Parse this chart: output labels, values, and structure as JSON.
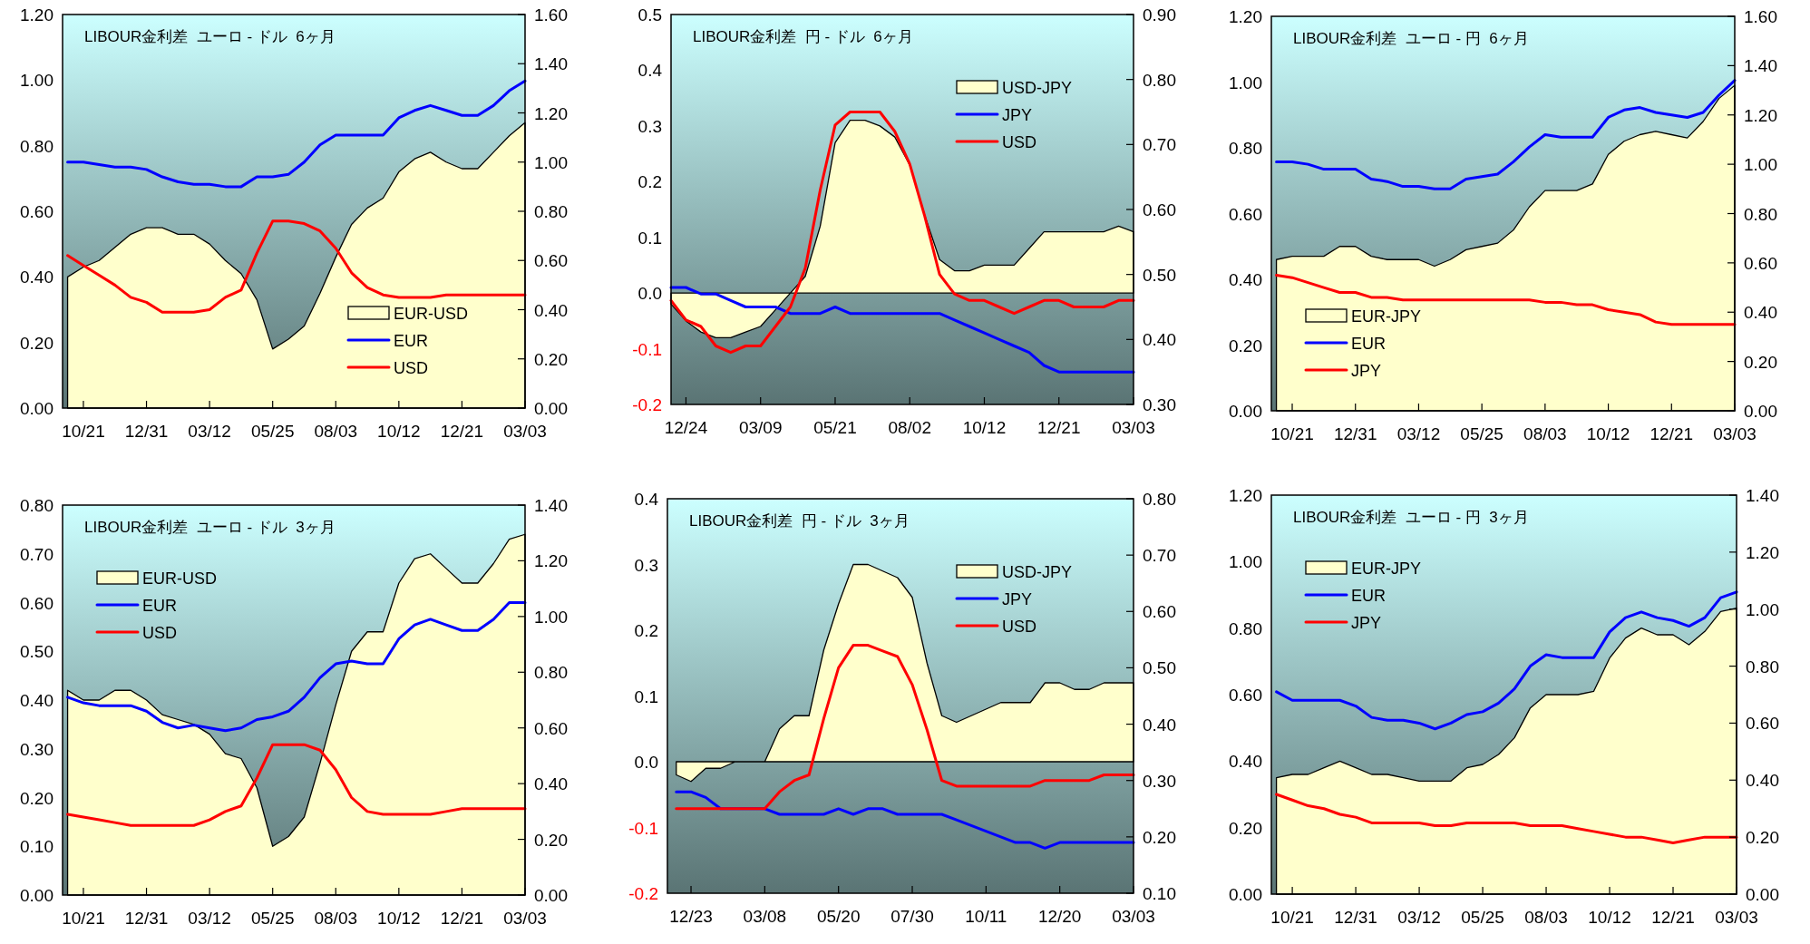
{
  "chart_data": [
    {
      "type": "line",
      "title": "LIBOUR金利差  ユーロ - ドル  6ヶ月",
      "legend": "bottom right",
      "categories": [
        null,
        "10/21",
        null,
        null,
        null,
        "12/31",
        null,
        null,
        null,
        "03/12",
        null,
        null,
        null,
        "05/25",
        null,
        null,
        null,
        "08/03",
        null,
        null,
        null,
        "10/12",
        null,
        null,
        null,
        "12/21",
        null,
        null,
        null,
        "03/03"
      ],
      "ylim": [
        0,
        1.2
      ],
      "yticks": [
        {
          "value": 0,
          "label": "0.00"
        },
        {
          "value": 0.2,
          "label": "0.20"
        },
        {
          "value": 0.4,
          "label": "0.40"
        },
        {
          "value": 0.6,
          "label": "0.60"
        },
        {
          "value": 0.8,
          "label": "0.80"
        },
        {
          "value": 1.0,
          "label": "1.00"
        },
        {
          "value": 1.2,
          "label": "1.20"
        }
      ],
      "y2lim": [
        0,
        1.6
      ],
      "y2ticks": [
        {
          "value": 0,
          "label": "0.00"
        },
        {
          "value": 0.2,
          "label": "0.20"
        },
        {
          "value": 0.4,
          "label": "0.40"
        },
        {
          "value": 0.6,
          "label": "0.60"
        },
        {
          "value": 0.8,
          "label": "0.80"
        },
        {
          "value": 1.0,
          "label": "1.00"
        },
        {
          "value": 1.2,
          "label": "1.20"
        },
        {
          "value": 1.4,
          "label": "1.40"
        },
        {
          "value": 1.6,
          "label": "1.60"
        }
      ],
      "series": [
        {
          "name": "EUR-USD",
          "type": "area",
          "color": "#ffffcc",
          "values": [
            0.4,
            0.43,
            0.45,
            0.49,
            0.53,
            0.55,
            0.55,
            0.53,
            0.53,
            0.5,
            0.45,
            0.41,
            0.33,
            0.18,
            0.21,
            0.25,
            0.35,
            0.46,
            0.56,
            0.61,
            0.64,
            0.72,
            0.76,
            0.78,
            0.75,
            0.73,
            0.73,
            0.78,
            0.83,
            0.87
          ]
        },
        {
          "name": "EUR",
          "type": "line",
          "axis": "y2",
          "color": "#0000ff",
          "values": [
            1.0,
            1.0,
            0.99,
            0.98,
            0.98,
            0.97,
            0.94,
            0.92,
            0.91,
            0.91,
            0.9,
            0.9,
            0.94,
            0.94,
            0.95,
            1.0,
            1.07,
            1.11,
            1.11,
            1.11,
            1.11,
            1.18,
            1.21,
            1.23,
            1.21,
            1.19,
            1.19,
            1.23,
            1.29,
            1.33
          ]
        },
        {
          "name": "USD",
          "type": "line",
          "axis": "y2",
          "color": "#ff0000",
          "values": [
            0.62,
            0.58,
            0.54,
            0.5,
            0.45,
            0.43,
            0.39,
            0.39,
            0.39,
            0.4,
            0.45,
            0.48,
            0.63,
            0.76,
            0.76,
            0.75,
            0.72,
            0.65,
            0.55,
            0.49,
            0.46,
            0.45,
            0.45,
            0.45,
            0.46,
            0.46,
            0.46,
            0.46,
            0.46,
            0.46
          ]
        }
      ]
    },
    {
      "type": "line",
      "title": "LIBOUR金利差  円 - ドル  6ヶ月",
      "legend": "top right",
      "categories": [
        null,
        "12/24",
        null,
        null,
        null,
        null,
        "03/09",
        null,
        null,
        null,
        null,
        "05/21",
        null,
        null,
        null,
        null,
        "08/02",
        null,
        null,
        null,
        null,
        "10/12",
        null,
        null,
        null,
        null,
        "12/21",
        null,
        null,
        null,
        null,
        "03/03"
      ],
      "ylim": [
        -0.2,
        0.5
      ],
      "yticks": [
        {
          "value": -0.2,
          "label": "-0.2"
        },
        {
          "value": -0.1,
          "label": "-0.1"
        },
        {
          "value": 0,
          "label": "0.0"
        },
        {
          "value": 0.1,
          "label": "0.1"
        },
        {
          "value": 0.2,
          "label": "0.2"
        },
        {
          "value": 0.3,
          "label": "0.3"
        },
        {
          "value": 0.4,
          "label": "0.4"
        },
        {
          "value": 0.5,
          "label": "0.5"
        }
      ],
      "y2lim": [
        0.3,
        0.9
      ],
      "y2ticks": [
        {
          "value": 0.3,
          "label": "0.30"
        },
        {
          "value": 0.4,
          "label": "0.40"
        },
        {
          "value": 0.5,
          "label": "0.50"
        },
        {
          "value": 0.6,
          "label": "0.60"
        },
        {
          "value": 0.7,
          "label": "0.70"
        },
        {
          "value": 0.8,
          "label": "0.80"
        },
        {
          "value": 0.9,
          "label": "0.90"
        }
      ],
      "series": [
        {
          "name": "USD-JPY",
          "type": "area",
          "color": "#ffffcc",
          "values": [
            -0.02,
            -0.05,
            -0.07,
            -0.08,
            -0.08,
            -0.07,
            -0.06,
            -0.03,
            0.0,
            0.03,
            0.12,
            0.27,
            0.31,
            0.31,
            0.3,
            0.28,
            0.23,
            0.14,
            0.06,
            0.04,
            0.04,
            0.05,
            0.05,
            0.05,
            0.08,
            0.11,
            0.11,
            0.11,
            0.11,
            0.11,
            0.12,
            0.11
          ]
        },
        {
          "name": "JPY",
          "type": "line",
          "axis": "y2",
          "color": "#0000ff",
          "values": [
            0.48,
            0.48,
            0.47,
            0.47,
            0.46,
            0.45,
            0.45,
            0.45,
            0.44,
            0.44,
            0.44,
            0.45,
            0.44,
            0.44,
            0.44,
            0.44,
            0.44,
            0.44,
            0.44,
            0.43,
            0.42,
            0.41,
            0.4,
            0.39,
            0.38,
            0.36,
            0.35,
            0.35,
            0.35,
            0.35,
            0.35,
            0.35
          ]
        },
        {
          "name": "USD",
          "type": "line",
          "axis": "y2",
          "color": "#ff0000",
          "values": [
            0.46,
            0.43,
            0.42,
            0.39,
            0.38,
            0.39,
            0.39,
            0.42,
            0.45,
            0.51,
            0.63,
            0.73,
            0.75,
            0.75,
            0.75,
            0.72,
            0.67,
            0.59,
            0.5,
            0.47,
            0.46,
            0.46,
            0.45,
            0.44,
            0.45,
            0.46,
            0.46,
            0.45,
            0.45,
            0.45,
            0.46,
            0.46
          ]
        }
      ]
    },
    {
      "type": "line",
      "title": "LIBOUR金利差  ユーロ - 円  6ヶ月",
      "legend": "bottom left",
      "categories": [
        null,
        "10/21",
        null,
        null,
        null,
        "12/31",
        null,
        null,
        null,
        "03/12",
        null,
        null,
        null,
        "05/25",
        null,
        null,
        null,
        "08/03",
        null,
        null,
        null,
        "10/12",
        null,
        null,
        null,
        "12/21",
        null,
        null,
        null,
        "03/03"
      ],
      "ylim": [
        0,
        1.2
      ],
      "yticks": [
        {
          "value": 0,
          "label": "0.00"
        },
        {
          "value": 0.2,
          "label": "0.20"
        },
        {
          "value": 0.4,
          "label": "0.40"
        },
        {
          "value": 0.6,
          "label": "0.60"
        },
        {
          "value": 0.8,
          "label": "0.80"
        },
        {
          "value": 1.0,
          "label": "1.00"
        },
        {
          "value": 1.2,
          "label": "1.20"
        }
      ],
      "y2lim": [
        0,
        1.6
      ],
      "y2ticks": [
        {
          "value": 0,
          "label": "0.00"
        },
        {
          "value": 0.2,
          "label": "0.20"
        },
        {
          "value": 0.4,
          "label": "0.40"
        },
        {
          "value": 0.6,
          "label": "0.60"
        },
        {
          "value": 0.8,
          "label": "0.80"
        },
        {
          "value": 1.0,
          "label": "1.00"
        },
        {
          "value": 1.2,
          "label": "1.20"
        },
        {
          "value": 1.4,
          "label": "1.40"
        },
        {
          "value": 1.6,
          "label": "1.60"
        }
      ],
      "series": [
        {
          "name": "EUR-JPY",
          "type": "area",
          "color": "#ffffcc",
          "values": [
            0.46,
            0.47,
            0.47,
            0.47,
            0.5,
            0.5,
            0.47,
            0.46,
            0.46,
            0.46,
            0.44,
            0.46,
            0.49,
            0.5,
            0.51,
            0.55,
            0.62,
            0.67,
            0.67,
            0.67,
            0.69,
            0.78,
            0.82,
            0.84,
            0.85,
            0.84,
            0.83,
            0.88,
            0.95,
            0.99
          ]
        },
        {
          "name": "EUR",
          "type": "line",
          "axis": "y2",
          "color": "#0000ff",
          "values": [
            1.01,
            1.01,
            1.0,
            0.98,
            0.98,
            0.98,
            0.94,
            0.93,
            0.91,
            0.91,
            0.9,
            0.9,
            0.94,
            0.95,
            0.96,
            1.01,
            1.07,
            1.12,
            1.11,
            1.11,
            1.11,
            1.19,
            1.22,
            1.23,
            1.21,
            1.2,
            1.19,
            1.21,
            1.28,
            1.34
          ]
        },
        {
          "name": "JPY",
          "type": "line",
          "axis": "y2",
          "color": "#ff0000",
          "values": [
            0.55,
            0.54,
            0.52,
            0.5,
            0.48,
            0.48,
            0.46,
            0.46,
            0.45,
            0.45,
            0.45,
            0.45,
            0.45,
            0.45,
            0.45,
            0.45,
            0.45,
            0.44,
            0.44,
            0.43,
            0.43,
            0.41,
            0.4,
            0.39,
            0.36,
            0.35,
            0.35,
            0.35,
            0.35,
            0.35
          ]
        }
      ]
    },
    {
      "type": "line",
      "title": "LIBOUR金利差  ユーロ - ドル  3ヶ月",
      "legend": "top left",
      "categories": [
        null,
        "10/21",
        null,
        null,
        null,
        "12/31",
        null,
        null,
        null,
        "03/12",
        null,
        null,
        null,
        "05/25",
        null,
        null,
        null,
        "08/03",
        null,
        null,
        null,
        "10/12",
        null,
        null,
        null,
        "12/21",
        null,
        null,
        null,
        "03/03"
      ],
      "ylim": [
        0,
        0.8
      ],
      "yticks": [
        {
          "value": 0,
          "label": "0.00"
        },
        {
          "value": 0.1,
          "label": "0.10"
        },
        {
          "value": 0.2,
          "label": "0.20"
        },
        {
          "value": 0.3,
          "label": "0.30"
        },
        {
          "value": 0.4,
          "label": "0.40"
        },
        {
          "value": 0.5,
          "label": "0.50"
        },
        {
          "value": 0.6,
          "label": "0.60"
        },
        {
          "value": 0.7,
          "label": "0.70"
        },
        {
          "value": 0.8,
          "label": "0.80"
        }
      ],
      "y2lim": [
        0,
        1.4
      ],
      "y2ticks": [
        {
          "value": 0,
          "label": "0.00"
        },
        {
          "value": 0.2,
          "label": "0.20"
        },
        {
          "value": 0.4,
          "label": "0.40"
        },
        {
          "value": 0.6,
          "label": "0.60"
        },
        {
          "value": 0.8,
          "label": "0.80"
        },
        {
          "value": 1.0,
          "label": "1.00"
        },
        {
          "value": 1.2,
          "label": "1.20"
        },
        {
          "value": 1.4,
          "label": "1.40"
        }
      ],
      "series": [
        {
          "name": "EUR-USD",
          "type": "area",
          "color": "#ffffcc",
          "values": [
            0.42,
            0.4,
            0.4,
            0.42,
            0.42,
            0.4,
            0.37,
            0.36,
            0.35,
            0.33,
            0.29,
            0.28,
            0.22,
            0.1,
            0.12,
            0.16,
            0.27,
            0.39,
            0.5,
            0.54,
            0.54,
            0.64,
            0.69,
            0.7,
            0.67,
            0.64,
            0.64,
            0.68,
            0.73,
            0.74
          ]
        },
        {
          "name": "EUR",
          "type": "line",
          "axis": "y2",
          "color": "#0000ff",
          "values": [
            0.71,
            0.69,
            0.68,
            0.68,
            0.68,
            0.66,
            0.62,
            0.6,
            0.61,
            0.6,
            0.59,
            0.6,
            0.63,
            0.64,
            0.66,
            0.71,
            0.78,
            0.83,
            0.84,
            0.83,
            0.83,
            0.92,
            0.97,
            0.99,
            0.97,
            0.95,
            0.95,
            0.99,
            1.05,
            1.05
          ]
        },
        {
          "name": "USD",
          "type": "line",
          "axis": "y2",
          "color": "#ff0000",
          "values": [
            0.29,
            0.28,
            0.27,
            0.26,
            0.25,
            0.25,
            0.25,
            0.25,
            0.25,
            0.27,
            0.3,
            0.32,
            0.42,
            0.54,
            0.54,
            0.54,
            0.52,
            0.45,
            0.35,
            0.3,
            0.29,
            0.29,
            0.29,
            0.29,
            0.3,
            0.31,
            0.31,
            0.31,
            0.31,
            0.31
          ]
        }
      ]
    },
    {
      "type": "line",
      "title": "LIBOUR金利差  円 - ドル  3ヶ月",
      "legend": "top right",
      "categories": [
        null,
        "12/23",
        null,
        null,
        null,
        null,
        "03/08",
        null,
        null,
        null,
        null,
        "05/20",
        null,
        null,
        null,
        null,
        "07/30",
        null,
        null,
        null,
        null,
        "10/11",
        null,
        null,
        null,
        null,
        "12/20",
        null,
        null,
        null,
        null,
        "03/03"
      ],
      "ylim": [
        -0.2,
        0.4
      ],
      "yticks": [
        {
          "value": -0.2,
          "label": "-0.2"
        },
        {
          "value": -0.1,
          "label": "-0.1"
        },
        {
          "value": 0,
          "label": "0.0"
        },
        {
          "value": 0.1,
          "label": "0.1"
        },
        {
          "value": 0.2,
          "label": "0.2"
        },
        {
          "value": 0.3,
          "label": "0.3"
        },
        {
          "value": 0.4,
          "label": "0.4"
        }
      ],
      "y2lim": [
        0.1,
        0.8
      ],
      "y2ticks": [
        {
          "value": 0.1,
          "label": "0.10"
        },
        {
          "value": 0.2,
          "label": "0.20"
        },
        {
          "value": 0.3,
          "label": "0.30"
        },
        {
          "value": 0.4,
          "label": "0.40"
        },
        {
          "value": 0.5,
          "label": "0.50"
        },
        {
          "value": 0.6,
          "label": "0.60"
        },
        {
          "value": 0.7,
          "label": "0.70"
        },
        {
          "value": 0.8,
          "label": "0.80"
        }
      ],
      "series": [
        {
          "name": "USD-JPY",
          "type": "area",
          "color": "#ffffcc",
          "values": [
            -0.02,
            -0.03,
            -0.01,
            -0.01,
            0.0,
            0.0,
            0.0,
            0.05,
            0.07,
            0.07,
            0.17,
            0.24,
            0.3,
            0.3,
            0.29,
            0.28,
            0.25,
            0.15,
            0.07,
            0.06,
            0.07,
            0.08,
            0.09,
            0.09,
            0.09,
            0.12,
            0.12,
            0.11,
            0.11,
            0.12,
            0.12,
            0.12
          ]
        },
        {
          "name": "JPY",
          "type": "line",
          "axis": "y2",
          "color": "#0000ff",
          "values": [
            0.28,
            0.28,
            0.27,
            0.25,
            0.25,
            0.25,
            0.25,
            0.24,
            0.24,
            0.24,
            0.24,
            0.25,
            0.24,
            0.25,
            0.25,
            0.24,
            0.24,
            0.24,
            0.24,
            0.23,
            0.22,
            0.21,
            0.2,
            0.19,
            0.19,
            0.18,
            0.19,
            0.19,
            0.19,
            0.19,
            0.19,
            0.19
          ]
        },
        {
          "name": "USD",
          "type": "line",
          "axis": "y2",
          "color": "#ff0000",
          "values": [
            0.25,
            0.25,
            0.25,
            0.25,
            0.25,
            0.25,
            0.25,
            0.28,
            0.3,
            0.31,
            0.41,
            0.5,
            0.54,
            0.54,
            0.53,
            0.52,
            0.47,
            0.39,
            0.3,
            0.29,
            0.29,
            0.29,
            0.29,
            0.29,
            0.29,
            0.3,
            0.3,
            0.3,
            0.3,
            0.31,
            0.31,
            0.31
          ]
        }
      ]
    },
    {
      "type": "line",
      "title": "LIBOUR金利差  ユーロ - 円  3ヶ月",
      "legend": "top left",
      "categories": [
        null,
        "10/21",
        null,
        null,
        null,
        "12/31",
        null,
        null,
        null,
        "03/12",
        null,
        null,
        null,
        "05/25",
        null,
        null,
        null,
        "08/03",
        null,
        null,
        null,
        "10/12",
        null,
        null,
        null,
        "12/21",
        null,
        null,
        null,
        "03/03"
      ],
      "ylim": [
        0,
        1.2
      ],
      "yticks": [
        {
          "value": 0,
          "label": "0.00"
        },
        {
          "value": 0.2,
          "label": "0.20"
        },
        {
          "value": 0.4,
          "label": "0.40"
        },
        {
          "value": 0.6,
          "label": "0.60"
        },
        {
          "value": 0.8,
          "label": "0.80"
        },
        {
          "value": 1.0,
          "label": "1.00"
        },
        {
          "value": 1.2,
          "label": "1.20"
        }
      ],
      "y2lim": [
        0,
        1.4
      ],
      "y2ticks": [
        {
          "value": 0,
          "label": "0.00"
        },
        {
          "value": 0.2,
          "label": "0.20"
        },
        {
          "value": 0.4,
          "label": "0.40"
        },
        {
          "value": 0.6,
          "label": "0.60"
        },
        {
          "value": 0.8,
          "label": "0.80"
        },
        {
          "value": 1.0,
          "label": "1.00"
        },
        {
          "value": 1.2,
          "label": "1.20"
        },
        {
          "value": 1.4,
          "label": "1.40"
        }
      ],
      "series": [
        {
          "name": "EUR-JPY",
          "type": "area",
          "color": "#ffffcc",
          "values": [
            0.35,
            0.36,
            0.36,
            0.38,
            0.4,
            0.38,
            0.36,
            0.36,
            0.35,
            0.34,
            0.34,
            0.34,
            0.38,
            0.39,
            0.42,
            0.47,
            0.56,
            0.6,
            0.6,
            0.6,
            0.61,
            0.71,
            0.77,
            0.8,
            0.78,
            0.78,
            0.75,
            0.79,
            0.85,
            0.86
          ]
        },
        {
          "name": "EUR",
          "type": "line",
          "axis": "y2",
          "color": "#0000ff",
          "values": [
            0.71,
            0.68,
            0.68,
            0.68,
            0.68,
            0.66,
            0.62,
            0.61,
            0.61,
            0.6,
            0.58,
            0.6,
            0.63,
            0.64,
            0.67,
            0.72,
            0.8,
            0.84,
            0.83,
            0.83,
            0.83,
            0.92,
            0.97,
            0.99,
            0.97,
            0.96,
            0.94,
            0.97,
            1.04,
            1.06
          ]
        },
        {
          "name": "JPY",
          "type": "line",
          "axis": "y2",
          "color": "#ff0000",
          "values": [
            0.35,
            0.33,
            0.31,
            0.3,
            0.28,
            0.27,
            0.25,
            0.25,
            0.25,
            0.25,
            0.24,
            0.24,
            0.25,
            0.25,
            0.25,
            0.25,
            0.24,
            0.24,
            0.24,
            0.23,
            0.22,
            0.21,
            0.2,
            0.2,
            0.19,
            0.18,
            0.19,
            0.2,
            0.2,
            0.2
          ]
        }
      ]
    }
  ]
}
